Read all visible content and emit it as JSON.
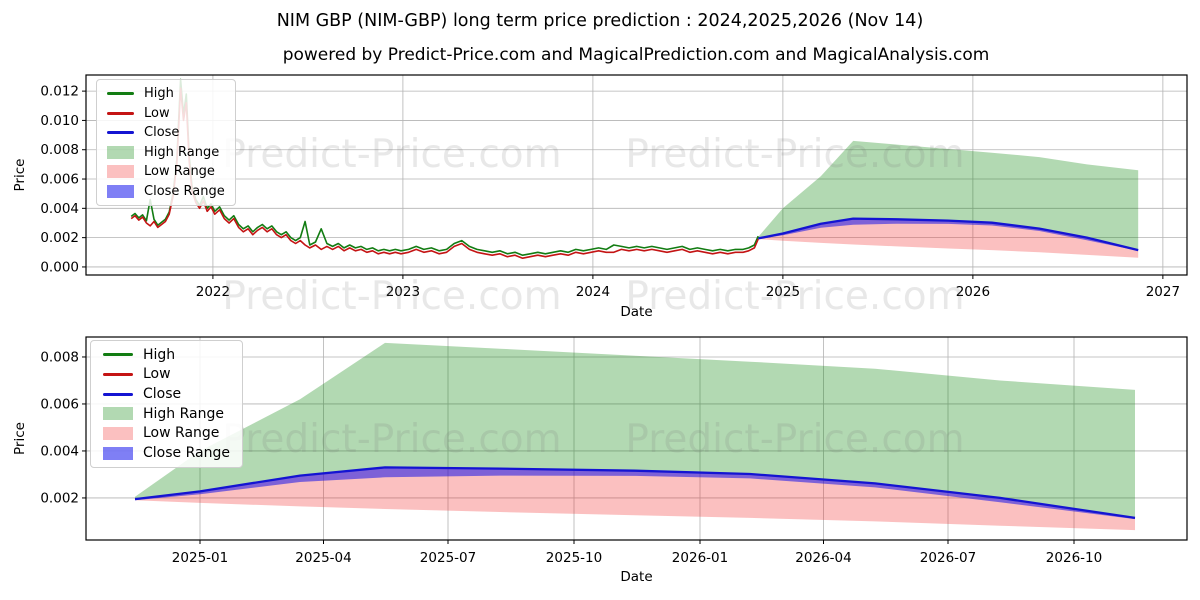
{
  "title": "NIM GBP (NIM-GBP) long term price prediction : 2024,2025,2026 (Nov 14)",
  "subtitle": "powered by Predict-Price.com and MagicalPrediction.com and MagicalAnalysis.com",
  "watermark": "Predict-Price.com",
  "legend": [
    "High",
    "Low",
    "Close",
    "High Range",
    "Low Range",
    "Close Range"
  ],
  "colors": {
    "high": "#127c12",
    "low": "#c41414",
    "close": "#1414d2",
    "high_range": "rgba(0,128,0,0.3)",
    "low_range": "rgba(240,30,30,0.28)",
    "close_range": "rgba(10,10,235,0.52)",
    "grid": "#b3b3b3",
    "axis": "#000000",
    "text": "#000000",
    "watermark": "#7a7a7a"
  },
  "chart_data": [
    {
      "type": "line",
      "name": "main-price-chart",
      "xlabel": "Date",
      "ylabel": "Price",
      "grid": true,
      "legend_position": "upper-left",
      "xlim": [
        2021.332,
        2027.127
      ],
      "ylim": [
        -0.00055,
        0.0131
      ],
      "x_ticks": [
        {
          "label": "2022",
          "value": 2022
        },
        {
          "label": "2023",
          "value": 2023
        },
        {
          "label": "2024",
          "value": 2024
        },
        {
          "label": "2025",
          "value": 2025
        },
        {
          "label": "2026",
          "value": 2026
        },
        {
          "label": "2027",
          "value": 2027
        }
      ],
      "y_ticks": [
        {
          "label": "0.000",
          "value": 0.0
        },
        {
          "label": "0.002",
          "value": 0.002
        },
        {
          "label": "0.004",
          "value": 0.004
        },
        {
          "label": "0.006",
          "value": 0.006
        },
        {
          "label": "0.008",
          "value": 0.008
        },
        {
          "label": "0.010",
          "value": 0.01
        },
        {
          "label": "0.012",
          "value": 0.012
        }
      ],
      "historical": {
        "x": [
          2021.57,
          2021.59,
          2021.61,
          2021.63,
          2021.65,
          2021.67,
          2021.69,
          2021.71,
          2021.73,
          2021.75,
          2021.77,
          2021.79,
          2021.81,
          2021.83,
          2021.845,
          2021.86,
          2021.875,
          2021.89,
          2021.91,
          2021.93,
          2021.95,
          2021.97,
          2021.99,
          2022.01,
          2022.035,
          2022.06,
          2022.085,
          2022.11,
          2022.135,
          2022.16,
          2022.185,
          2022.21,
          2022.235,
          2022.26,
          2022.285,
          2022.31,
          2022.335,
          2022.36,
          2022.385,
          2022.41,
          2022.435,
          2022.46,
          2022.485,
          2022.51,
          2022.54,
          2022.57,
          2022.6,
          2022.63,
          2022.66,
          2022.69,
          2022.72,
          2022.75,
          2022.78,
          2022.81,
          2022.84,
          2022.87,
          2022.9,
          2022.93,
          2022.96,
          2022.99,
          2023.03,
          2023.07,
          2023.11,
          2023.15,
          2023.19,
          2023.23,
          2023.27,
          2023.31,
          2023.35,
          2023.39,
          2023.43,
          2023.47,
          2023.51,
          2023.55,
          2023.59,
          2023.63,
          2023.67,
          2023.71,
          2023.75,
          2023.79,
          2023.83,
          2023.87,
          2023.91,
          2023.95,
          2023.99,
          2024.03,
          2024.07,
          2024.11,
          2024.15,
          2024.19,
          2024.23,
          2024.27,
          2024.31,
          2024.35,
          2024.39,
          2024.43,
          2024.47,
          2024.51,
          2024.55,
          2024.59,
          2024.63,
          2024.67,
          2024.71,
          2024.75,
          2024.79,
          2024.82,
          2024.85,
          2024.87
        ],
        "high": [
          0.00345,
          0.00365,
          0.00335,
          0.00355,
          0.00315,
          0.0046,
          0.00325,
          0.00285,
          0.00305,
          0.00325,
          0.00375,
          0.005,
          0.0073,
          0.0128,
          0.0104,
          0.0118,
          0.0076,
          0.0055,
          0.0046,
          0.0042,
          0.0048,
          0.004,
          0.0043,
          0.0038,
          0.0041,
          0.0035,
          0.0032,
          0.0035,
          0.0029,
          0.0026,
          0.0028,
          0.0024,
          0.0027,
          0.0029,
          0.0026,
          0.0028,
          0.0024,
          0.0022,
          0.0024,
          0.002,
          0.0018,
          0.002,
          0.0031,
          0.0015,
          0.0017,
          0.0026,
          0.0016,
          0.0014,
          0.0016,
          0.0013,
          0.0015,
          0.0013,
          0.0014,
          0.0012,
          0.0013,
          0.0011,
          0.0012,
          0.0011,
          0.0012,
          0.0011,
          0.0012,
          0.0014,
          0.0012,
          0.0013,
          0.0011,
          0.0012,
          0.0016,
          0.0018,
          0.0014,
          0.0012,
          0.0011,
          0.001,
          0.0011,
          0.0009,
          0.001,
          0.0008,
          0.0009,
          0.001,
          0.0009,
          0.001,
          0.0011,
          0.001,
          0.0012,
          0.0011,
          0.0012,
          0.0013,
          0.0012,
          0.0015,
          0.0014,
          0.0013,
          0.0014,
          0.0013,
          0.0014,
          0.0013,
          0.0012,
          0.0013,
          0.0014,
          0.0012,
          0.0013,
          0.0012,
          0.0011,
          0.0012,
          0.0011,
          0.0012,
          0.0012,
          0.0013,
          0.0015,
          0.0021
        ],
        "low": [
          0.0033,
          0.0035,
          0.0032,
          0.0034,
          0.003,
          0.0028,
          0.0031,
          0.0027,
          0.0029,
          0.0031,
          0.0036,
          0.0048,
          0.007,
          0.0122,
          0.01,
          0.0112,
          0.0072,
          0.0052,
          0.0044,
          0.004,
          0.0045,
          0.0038,
          0.0041,
          0.0036,
          0.0039,
          0.0033,
          0.003,
          0.0033,
          0.0027,
          0.0024,
          0.0026,
          0.0022,
          0.0025,
          0.0027,
          0.0024,
          0.0026,
          0.0022,
          0.002,
          0.0022,
          0.0018,
          0.0016,
          0.0018,
          0.0015,
          0.0013,
          0.0015,
          0.0012,
          0.0014,
          0.0012,
          0.0014,
          0.0011,
          0.0013,
          0.0011,
          0.0012,
          0.001,
          0.0011,
          0.0009,
          0.001,
          0.0009,
          0.001,
          0.0009,
          0.001,
          0.0012,
          0.001,
          0.0011,
          0.0009,
          0.001,
          0.0014,
          0.0016,
          0.0012,
          0.001,
          0.0009,
          0.0008,
          0.0009,
          0.0007,
          0.0008,
          0.0006,
          0.0007,
          0.0008,
          0.0007,
          0.0008,
          0.0009,
          0.0008,
          0.001,
          0.0009,
          0.001,
          0.0011,
          0.001,
          0.001,
          0.0012,
          0.0011,
          0.0012,
          0.0011,
          0.0012,
          0.0011,
          0.001,
          0.0011,
          0.0012,
          0.001,
          0.0011,
          0.001,
          0.0009,
          0.001,
          0.0009,
          0.001,
          0.001,
          0.0011,
          0.0013,
          0.0019
        ]
      },
      "forecast": {
        "x": [
          2024.87,
          2025.0,
          2025.2,
          2025.37,
          2025.6,
          2025.87,
          2026.1,
          2026.35,
          2026.6,
          2026.87
        ],
        "high_top": [
          0.00205,
          0.004,
          0.0062,
          0.0086,
          0.00835,
          0.00805,
          0.0078,
          0.0075,
          0.007,
          0.0066
        ],
        "close": [
          0.00195,
          0.00228,
          0.00295,
          0.0033,
          0.00325,
          0.00316,
          0.00302,
          0.00262,
          0.002,
          0.00115
        ],
        "close_low": [
          0.0019,
          0.00216,
          0.00268,
          0.00288,
          0.00295,
          0.00294,
          0.00283,
          0.00245,
          0.00182,
          0.0011
        ],
        "low_bottom": [
          0.0019,
          0.00179,
          0.00164,
          0.00153,
          0.0014,
          0.00126,
          0.00115,
          0.001,
          0.00082,
          0.00063
        ]
      }
    },
    {
      "type": "line",
      "name": "forecast-detail-chart",
      "xlabel": "Date",
      "ylabel": "Price",
      "grid": true,
      "legend_position": "upper-left",
      "xlim": [
        2024.772,
        2026.974
      ],
      "ylim": [
        0.00021,
        0.00885
      ],
      "x_ticks": [
        {
          "label": "2025-01",
          "value": 2025.0
        },
        {
          "label": "2025-04",
          "value": 2025.247
        },
        {
          "label": "2025-07",
          "value": 2025.496
        },
        {
          "label": "2025-10",
          "value": 2025.748
        },
        {
          "label": "2026-01",
          "value": 2026.0
        },
        {
          "label": "2026-04",
          "value": 2026.247
        },
        {
          "label": "2026-07",
          "value": 2026.496
        },
        {
          "label": "2026-10",
          "value": 2026.748
        }
      ],
      "y_ticks": [
        {
          "label": "0.002",
          "value": 0.002
        },
        {
          "label": "0.004",
          "value": 0.004
        },
        {
          "label": "0.006",
          "value": 0.006
        },
        {
          "label": "0.008",
          "value": 0.008
        }
      ],
      "forecast": {
        "x": [
          2024.87,
          2025.0,
          2025.2,
          2025.37,
          2025.6,
          2025.87,
          2026.1,
          2026.35,
          2026.6,
          2026.87
        ],
        "high_top": [
          0.00205,
          0.004,
          0.0062,
          0.0086,
          0.00835,
          0.00805,
          0.0078,
          0.0075,
          0.007,
          0.0066
        ],
        "close": [
          0.00195,
          0.00228,
          0.00295,
          0.0033,
          0.00325,
          0.00316,
          0.00302,
          0.00262,
          0.002,
          0.00115
        ],
        "close_low": [
          0.0019,
          0.00216,
          0.00268,
          0.00288,
          0.00295,
          0.00294,
          0.00283,
          0.00245,
          0.00182,
          0.0011
        ],
        "low_bottom": [
          0.0019,
          0.00179,
          0.00164,
          0.00153,
          0.0014,
          0.00126,
          0.00115,
          0.001,
          0.00082,
          0.00063
        ]
      }
    }
  ]
}
